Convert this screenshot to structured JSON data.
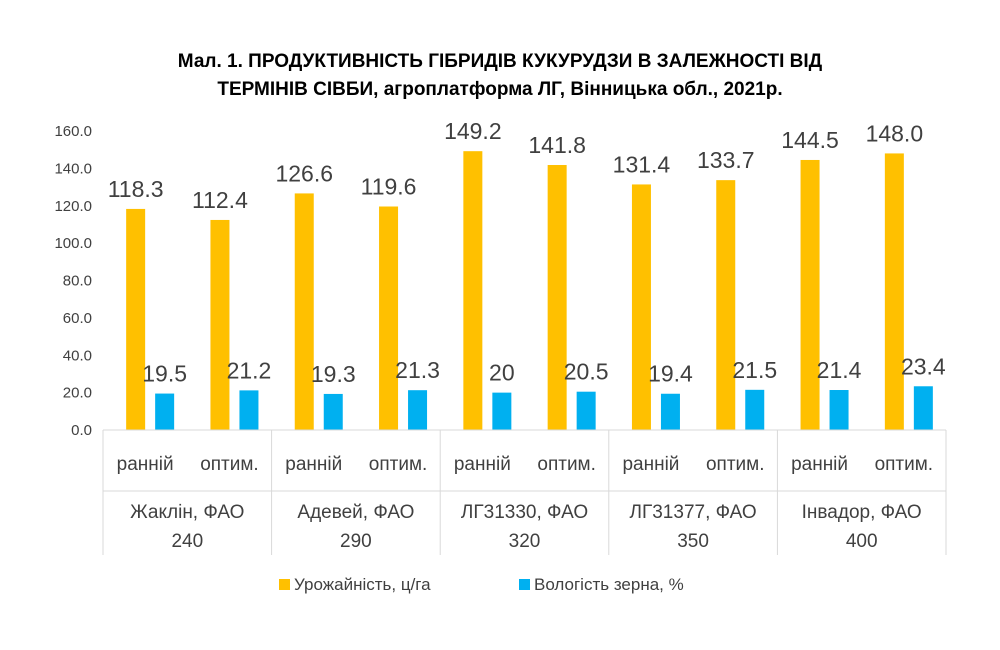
{
  "chart_data": {
    "type": "bar",
    "title": [
      "Мал. 1. ПРОДУКТИВНІСТЬ ГІБРИДІВ КУКУРУДЗИ В ЗАЛЕЖНОСТІ ВІД",
      "ТЕРМІНІВ СІВБИ, агроплатформа ЛГ, Вінницька обл., 2021р."
    ],
    "groups": [
      {
        "label": [
          "Жаклін, ФАО",
          "240"
        ],
        "subcategories": [
          "ранній",
          "оптим."
        ]
      },
      {
        "label": [
          "Адевей, ФАО",
          "290"
        ],
        "subcategories": [
          "ранній",
          "оптим."
        ]
      },
      {
        "label": [
          "ЛГ31330, ФАО",
          "320"
        ],
        "subcategories": [
          "ранній",
          "оптим."
        ]
      },
      {
        "label": [
          "ЛГ31377, ФАО",
          "350"
        ],
        "subcategories": [
          "ранній",
          "оптим."
        ]
      },
      {
        "label": [
          "Інвадор, ФАО",
          "400"
        ],
        "subcategories": [
          "ранній",
          "оптим."
        ]
      }
    ],
    "series": [
      {
        "name": "Урожайність, ц/га",
        "color": "#FFC000",
        "values": [
          118.3,
          112.4,
          126.6,
          119.6,
          149.2,
          141.8,
          131.4,
          133.7,
          144.5,
          148.0
        ],
        "labels": [
          "118.3",
          "112.4",
          "126.6",
          "119.6",
          "149.2",
          "141.8",
          "131.4",
          "133.7",
          "144.5",
          "148.0"
        ]
      },
      {
        "name": "Вологість зерна, %",
        "color": "#00B0F0",
        "values": [
          19.5,
          21.2,
          19.3,
          21.3,
          20,
          20.5,
          19.4,
          21.5,
          21.4,
          23.4
        ],
        "labels": [
          "19.5",
          "21.2",
          "19.3",
          "21.3",
          "20",
          "20.5",
          "19.4",
          "21.5",
          "21.4",
          "23.4"
        ]
      }
    ],
    "ylim": [
      0,
      160
    ],
    "yticks": [
      "0.0",
      "20.0",
      "40.0",
      "60.0",
      "80.0",
      "100.0",
      "120.0",
      "140.0",
      "160.0"
    ],
    "ytick_values": [
      0,
      20,
      40,
      60,
      80,
      100,
      120,
      140,
      160
    ],
    "grid": false,
    "legend_position": "bottom"
  }
}
